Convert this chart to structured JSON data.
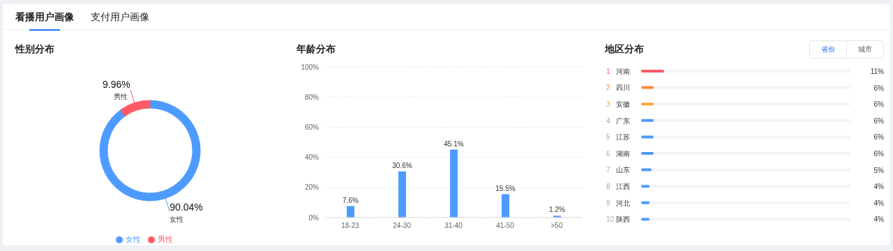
{
  "chart_data": [
    {
      "type": "other",
      "annotations": [
        "看播用户画像",
        "支付用户画像"
      ]
    },
    {
      "type": "donut",
      "title": "性别分布",
      "categories": [
        "女性",
        "男性"
      ],
      "values": [
        90.04,
        9.96
      ],
      "colors": [
        "#4e9bff",
        "#ff5a64"
      ],
      "value_labels": [
        "90.04%",
        "9.96%"
      ],
      "legend": "bottom"
    },
    {
      "type": "bar",
      "title": "年龄分布",
      "categories": [
        "18-23",
        "24-30",
        "31-40",
        "41-50",
        ">50"
      ],
      "values": [
        7.6,
        30.6,
        45.1,
        15.5,
        1.2
      ],
      "color": "#4e9bff",
      "value_labels": [
        "7.6%",
        "30.6%",
        "45.1%",
        "15.5%",
        "1.2%"
      ],
      "ylim": [
        0,
        100
      ],
      "yticks": [
        {
          "value": 0,
          "label": "0%"
        },
        {
          "value": 20,
          "label": "20%"
        },
        {
          "value": 40,
          "label": "40%"
        },
        {
          "value": 60,
          "label": "60%"
        },
        {
          "value": 80,
          "label": "80%"
        },
        {
          "value": 100,
          "label": "100%"
        }
      ],
      "grid": "y"
    },
    {
      "type": "bar",
      "orientation": "horizontal",
      "title": "地区分布",
      "annotations": [
        "省份",
        "城市"
      ],
      "categories": [
        "1 河南",
        "2 四川",
        "3 安徽",
        "4 广东",
        "5 江苏",
        "6 湖南",
        "7 山东",
        "8 江西",
        "9 河北",
        "10 陕西"
      ],
      "values": [
        11,
        6,
        6,
        6,
        6,
        6,
        5,
        4,
        4,
        4
      ],
      "colors": [
        "#ff5a64",
        "#ff8a3d",
        "#ffa53d",
        "#4e9bff",
        "#4e9bff",
        "#4e9bff",
        "#4e9bff",
        "#4e9bff",
        "#4e9bff",
        "#4e9bff"
      ],
      "value_labels": [
        "11%",
        "6%",
        "6%",
        "6%",
        "6%",
        "6%",
        "5%",
        "4%",
        "4%",
        "4%"
      ],
      "xlim": [
        0,
        100
      ],
      "tick_labels": "y"
    }
  ]
}
